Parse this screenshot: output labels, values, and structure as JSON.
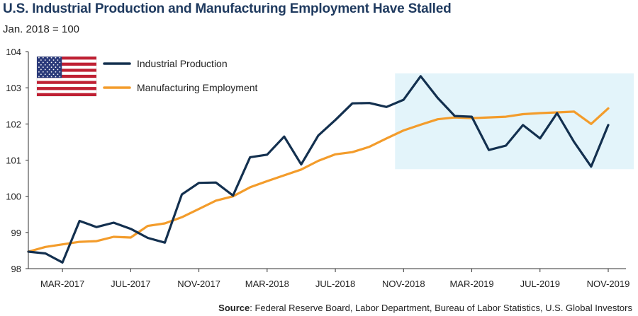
{
  "title": "U.S. Industrial Production and Manufacturing Employment Have Stalled",
  "subtitle": "Jan. 2018 = 100",
  "source_label": "Source",
  "source_text": ": Federal Reserve Board, Labor Department, Bureau of Labor Statistics, U.S. Global Investors",
  "colors": {
    "industrial": "#13304f",
    "manufacturing": "#f39c2b",
    "highlight": "#e3f4fa",
    "axis": "#333333"
  },
  "chart_data": {
    "type": "line",
    "title": "U.S. Industrial Production and Manufacturing Employment Have Stalled",
    "ylabel": "Jan. 2018 = 100",
    "xlabel": "",
    "ylim": [
      98,
      104
    ],
    "yticks": [
      98,
      99,
      100,
      101,
      102,
      103,
      104
    ],
    "xlim": [
      0,
      35
    ],
    "x_tick_positions": [
      2,
      6,
      10,
      14,
      18,
      22,
      26,
      30,
      34
    ],
    "x_tick_labels": [
      "MAR-2017",
      "JUL-2017",
      "NOV-2017",
      "MAR-2018",
      "JUL-2018",
      "NOV-2018",
      "MAR-2019",
      "JUL-2019",
      "NOV-2019"
    ],
    "highlight_region": {
      "x": [
        21.5,
        35.5
      ],
      "y": [
        100.75,
        103.4
      ]
    },
    "legend": [
      "Industrial Production",
      "Manufacturing Employment"
    ],
    "series": [
      {
        "name": "Industrial Production",
        "x": [
          0,
          1,
          2,
          3,
          4,
          5,
          6,
          7,
          8,
          9,
          10,
          11,
          12,
          13,
          14,
          15,
          16,
          17,
          18,
          19,
          20,
          21,
          22,
          23,
          24,
          25,
          26,
          27,
          28,
          29,
          30,
          31,
          32,
          33,
          34
        ],
        "values": [
          98.47,
          98.42,
          98.17,
          99.32,
          99.15,
          99.27,
          99.1,
          98.85,
          98.72,
          100.05,
          100.37,
          100.38,
          100.02,
          101.08,
          101.15,
          101.65,
          100.88,
          101.68,
          102.11,
          102.57,
          102.58,
          102.47,
          102.67,
          103.32,
          102.72,
          102.22,
          102.2,
          101.28,
          101.4,
          101.97,
          101.6,
          102.3,
          101.5,
          100.82,
          101.97
        ]
      },
      {
        "name": "Manufacturing Employment",
        "x": [
          0,
          1,
          2,
          3,
          4,
          5,
          6,
          7,
          8,
          9,
          10,
          11,
          12,
          13,
          14,
          15,
          16,
          17,
          18,
          19,
          20,
          21,
          22,
          23,
          24,
          25,
          26,
          27,
          28,
          29,
          30,
          31,
          32,
          33,
          34
        ],
        "values": [
          98.47,
          98.6,
          98.67,
          98.74,
          98.76,
          98.88,
          98.86,
          99.18,
          99.25,
          99.42,
          99.65,
          99.88,
          100.0,
          100.25,
          100.42,
          100.58,
          100.74,
          100.98,
          101.16,
          101.22,
          101.37,
          101.6,
          101.82,
          101.98,
          102.13,
          102.18,
          102.16,
          102.18,
          102.2,
          102.27,
          102.3,
          102.32,
          102.34,
          102.0,
          102.43
        ]
      }
    ]
  }
}
